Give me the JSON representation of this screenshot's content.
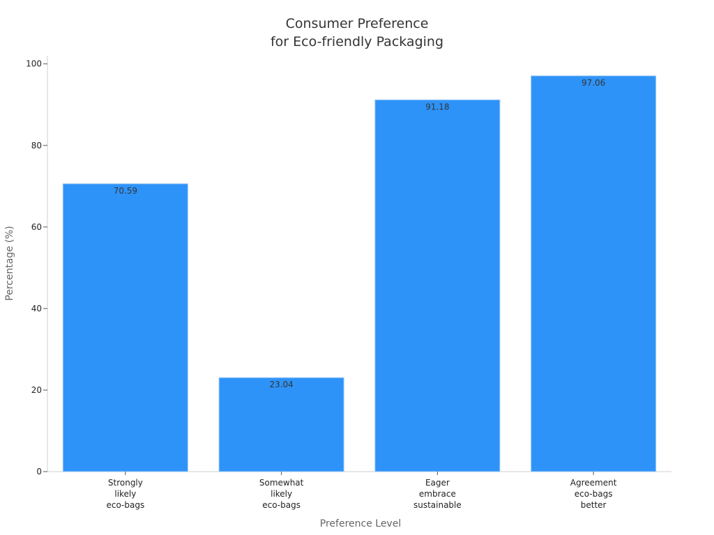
{
  "chart_data": {
    "type": "bar",
    "title_lines": [
      "Consumer Preference",
      "for Eco-friendly Packaging"
    ],
    "xlabel": "Preference Level",
    "ylabel": "Percentage (%)",
    "categories": [
      [
        "Strongly",
        "likely",
        "eco-bags"
      ],
      [
        "Somewhat",
        "likely",
        "eco-bags"
      ],
      [
        "Eager",
        "embrace",
        "sustainable"
      ],
      [
        "Agreement",
        "eco-bags",
        "better"
      ]
    ],
    "values": [
      70.59,
      23.04,
      91.18,
      97.06
    ],
    "value_labels": [
      "70.59",
      "23.04",
      "91.18",
      "97.06"
    ],
    "ylim": [
      0,
      102
    ],
    "yticks": [
      0,
      20,
      40,
      60,
      80,
      100
    ],
    "grid": false,
    "legend": "none",
    "bar_color": "#2e93f8"
  }
}
